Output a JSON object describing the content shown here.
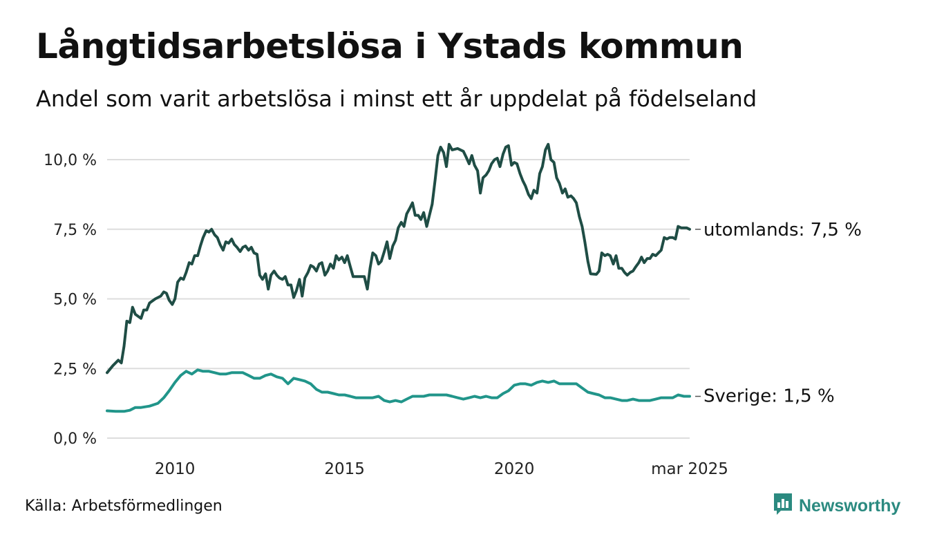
{
  "title": "Långtidsarbetslösa i Ystads kommun",
  "subtitle": "Andel som varit arbetslösa i minst ett år uppdelat på födelseland",
  "source": "Källa: Arbetsförmedlingen",
  "brand": {
    "name": "Newsworthy",
    "icon": "newsworthy-logo-icon",
    "color": "#2b8a80"
  },
  "chart_data": {
    "type": "line",
    "x_ticks": [
      {
        "x": 2010,
        "label": "2010"
      },
      {
        "x": 2015,
        "label": "2015"
      },
      {
        "x": 2020,
        "label": "2020"
      },
      {
        "x": 2025.17,
        "label": "mar 2025"
      }
    ],
    "y_ticks": [
      {
        "value": 0,
        "label": "0,0 %"
      },
      {
        "value": 2.5,
        "label": "2,5 %"
      },
      {
        "value": 5,
        "label": "5,0 %"
      },
      {
        "value": 7.5,
        "label": "7,5 %"
      },
      {
        "value": 10,
        "label": "10,0 %"
      }
    ],
    "xlim": [
      2008.0,
      2025.17
    ],
    "ylim": [
      0,
      10.6
    ],
    "grid": true,
    "series": [
      {
        "name": "utomlands",
        "end_label": "utomlands: 7,5 %",
        "color": "#1f4d45",
        "points": [
          [
            2008.0,
            2.35
          ],
          [
            2008.17,
            2.6
          ],
          [
            2008.33,
            2.8
          ],
          [
            2008.42,
            2.7
          ],
          [
            2008.5,
            3.3
          ],
          [
            2008.58,
            4.2
          ],
          [
            2008.67,
            4.15
          ],
          [
            2008.75,
            4.7
          ],
          [
            2008.83,
            4.45
          ],
          [
            2009.0,
            4.3
          ],
          [
            2009.08,
            4.6
          ],
          [
            2009.17,
            4.6
          ],
          [
            2009.25,
            4.85
          ],
          [
            2009.42,
            5.0
          ],
          [
            2009.58,
            5.1
          ],
          [
            2009.67,
            5.25
          ],
          [
            2009.75,
            5.2
          ],
          [
            2009.83,
            4.95
          ],
          [
            2009.92,
            4.8
          ],
          [
            2010.0,
            5.0
          ],
          [
            2010.08,
            5.6
          ],
          [
            2010.17,
            5.75
          ],
          [
            2010.25,
            5.7
          ],
          [
            2010.33,
            5.95
          ],
          [
            2010.42,
            6.3
          ],
          [
            2010.5,
            6.25
          ],
          [
            2010.58,
            6.55
          ],
          [
            2010.67,
            6.55
          ],
          [
            2010.75,
            6.9
          ],
          [
            2010.83,
            7.2
          ],
          [
            2010.92,
            7.45
          ],
          [
            2011.0,
            7.4
          ],
          [
            2011.08,
            7.5
          ],
          [
            2011.17,
            7.3
          ],
          [
            2011.25,
            7.2
          ],
          [
            2011.33,
            6.95
          ],
          [
            2011.42,
            6.75
          ],
          [
            2011.5,
            7.05
          ],
          [
            2011.58,
            7.0
          ],
          [
            2011.67,
            7.15
          ],
          [
            2011.75,
            6.95
          ],
          [
            2011.83,
            6.85
          ],
          [
            2011.92,
            6.7
          ],
          [
            2012.0,
            6.85
          ],
          [
            2012.08,
            6.9
          ],
          [
            2012.17,
            6.75
          ],
          [
            2012.25,
            6.85
          ],
          [
            2012.33,
            6.65
          ],
          [
            2012.42,
            6.6
          ],
          [
            2012.5,
            5.85
          ],
          [
            2012.58,
            5.7
          ],
          [
            2012.67,
            5.9
          ],
          [
            2012.75,
            5.35
          ],
          [
            2012.83,
            5.85
          ],
          [
            2012.92,
            6.0
          ],
          [
            2013.0,
            5.85
          ],
          [
            2013.08,
            5.75
          ],
          [
            2013.17,
            5.7
          ],
          [
            2013.25,
            5.8
          ],
          [
            2013.33,
            5.5
          ],
          [
            2013.42,
            5.5
          ],
          [
            2013.5,
            5.05
          ],
          [
            2013.58,
            5.3
          ],
          [
            2013.67,
            5.7
          ],
          [
            2013.75,
            5.1
          ],
          [
            2013.83,
            5.75
          ],
          [
            2013.92,
            5.95
          ],
          [
            2014.0,
            6.2
          ],
          [
            2014.08,
            6.15
          ],
          [
            2014.17,
            6.0
          ],
          [
            2014.25,
            6.25
          ],
          [
            2014.33,
            6.3
          ],
          [
            2014.42,
            5.85
          ],
          [
            2014.5,
            6.0
          ],
          [
            2014.58,
            6.25
          ],
          [
            2014.67,
            6.1
          ],
          [
            2014.75,
            6.55
          ],
          [
            2014.83,
            6.4
          ],
          [
            2014.92,
            6.5
          ],
          [
            2015.0,
            6.3
          ],
          [
            2015.08,
            6.55
          ],
          [
            2015.17,
            6.15
          ],
          [
            2015.25,
            5.8
          ],
          [
            2015.42,
            5.8
          ],
          [
            2015.58,
            5.8
          ],
          [
            2015.67,
            5.35
          ],
          [
            2015.75,
            6.1
          ],
          [
            2015.83,
            6.65
          ],
          [
            2015.92,
            6.55
          ],
          [
            2016.0,
            6.25
          ],
          [
            2016.08,
            6.35
          ],
          [
            2016.17,
            6.7
          ],
          [
            2016.25,
            7.05
          ],
          [
            2016.33,
            6.45
          ],
          [
            2016.42,
            6.9
          ],
          [
            2016.5,
            7.1
          ],
          [
            2016.58,
            7.55
          ],
          [
            2016.67,
            7.75
          ],
          [
            2016.75,
            7.6
          ],
          [
            2016.83,
            8.05
          ],
          [
            2016.92,
            8.25
          ],
          [
            2017.0,
            8.45
          ],
          [
            2017.08,
            8.0
          ],
          [
            2017.17,
            8.0
          ],
          [
            2017.25,
            7.85
          ],
          [
            2017.33,
            8.1
          ],
          [
            2017.42,
            7.6
          ],
          [
            2017.5,
            8.0
          ],
          [
            2017.58,
            8.4
          ],
          [
            2017.67,
            9.3
          ],
          [
            2017.75,
            10.15
          ],
          [
            2017.83,
            10.45
          ],
          [
            2017.92,
            10.25
          ],
          [
            2018.0,
            9.75
          ],
          [
            2018.08,
            10.55
          ],
          [
            2018.17,
            10.35
          ],
          [
            2018.33,
            10.4
          ],
          [
            2018.5,
            10.3
          ],
          [
            2018.58,
            10.1
          ],
          [
            2018.67,
            9.85
          ],
          [
            2018.75,
            10.15
          ],
          [
            2018.83,
            9.8
          ],
          [
            2018.92,
            9.6
          ],
          [
            2019.0,
            8.8
          ],
          [
            2019.08,
            9.35
          ],
          [
            2019.17,
            9.45
          ],
          [
            2019.25,
            9.6
          ],
          [
            2019.33,
            9.85
          ],
          [
            2019.42,
            10.0
          ],
          [
            2019.5,
            10.05
          ],
          [
            2019.58,
            9.75
          ],
          [
            2019.67,
            10.2
          ],
          [
            2019.75,
            10.45
          ],
          [
            2019.83,
            10.5
          ],
          [
            2019.92,
            9.8
          ],
          [
            2020.0,
            9.9
          ],
          [
            2020.08,
            9.85
          ],
          [
            2020.17,
            9.5
          ],
          [
            2020.25,
            9.25
          ],
          [
            2020.33,
            9.05
          ],
          [
            2020.42,
            8.75
          ],
          [
            2020.5,
            8.6
          ],
          [
            2020.58,
            8.9
          ],
          [
            2020.67,
            8.8
          ],
          [
            2020.75,
            9.5
          ],
          [
            2020.83,
            9.75
          ],
          [
            2020.92,
            10.35
          ],
          [
            2021.0,
            10.55
          ],
          [
            2021.08,
            10.0
          ],
          [
            2021.17,
            9.9
          ],
          [
            2021.25,
            9.35
          ],
          [
            2021.33,
            9.15
          ],
          [
            2021.42,
            8.8
          ],
          [
            2021.5,
            8.95
          ],
          [
            2021.58,
            8.65
          ],
          [
            2021.67,
            8.7
          ],
          [
            2021.75,
            8.6
          ],
          [
            2021.83,
            8.45
          ],
          [
            2021.92,
            7.95
          ],
          [
            2022.0,
            7.6
          ],
          [
            2022.08,
            7.05
          ],
          [
            2022.17,
            6.35
          ],
          [
            2022.25,
            5.9
          ],
          [
            2022.42,
            5.88
          ],
          [
            2022.5,
            6.0
          ],
          [
            2022.58,
            6.65
          ],
          [
            2022.67,
            6.55
          ],
          [
            2022.75,
            6.6
          ],
          [
            2022.83,
            6.55
          ],
          [
            2022.92,
            6.25
          ],
          [
            2023.0,
            6.55
          ],
          [
            2023.08,
            6.1
          ],
          [
            2023.17,
            6.1
          ],
          [
            2023.25,
            5.95
          ],
          [
            2023.33,
            5.85
          ],
          [
            2023.42,
            5.95
          ],
          [
            2023.5,
            6.0
          ],
          [
            2023.58,
            6.15
          ],
          [
            2023.67,
            6.3
          ],
          [
            2023.75,
            6.5
          ],
          [
            2023.83,
            6.3
          ],
          [
            2023.92,
            6.45
          ],
          [
            2024.0,
            6.45
          ],
          [
            2024.08,
            6.6
          ],
          [
            2024.17,
            6.55
          ],
          [
            2024.25,
            6.65
          ],
          [
            2024.33,
            6.75
          ],
          [
            2024.42,
            7.2
          ],
          [
            2024.5,
            7.15
          ],
          [
            2024.58,
            7.2
          ],
          [
            2024.67,
            7.2
          ],
          [
            2024.75,
            7.15
          ],
          [
            2024.83,
            7.6
          ],
          [
            2024.92,
            7.55
          ],
          [
            2025.0,
            7.55
          ],
          [
            2025.08,
            7.55
          ],
          [
            2025.17,
            7.5
          ]
        ]
      },
      {
        "name": "Sverige",
        "end_label": "Sverige: 1,5 %",
        "color": "#21958a",
        "points": [
          [
            2008.0,
            0.98
          ],
          [
            2008.25,
            0.96
          ],
          [
            2008.5,
            0.96
          ],
          [
            2008.67,
            1.0
          ],
          [
            2008.83,
            1.1
          ],
          [
            2009.0,
            1.1
          ],
          [
            2009.25,
            1.15
          ],
          [
            2009.5,
            1.25
          ],
          [
            2009.67,
            1.45
          ],
          [
            2009.83,
            1.7
          ],
          [
            2010.0,
            2.0
          ],
          [
            2010.17,
            2.25
          ],
          [
            2010.33,
            2.4
          ],
          [
            2010.5,
            2.3
          ],
          [
            2010.67,
            2.45
          ],
          [
            2010.83,
            2.4
          ],
          [
            2011.0,
            2.4
          ],
          [
            2011.17,
            2.35
          ],
          [
            2011.33,
            2.3
          ],
          [
            2011.5,
            2.3
          ],
          [
            2011.67,
            2.35
          ],
          [
            2011.83,
            2.35
          ],
          [
            2012.0,
            2.35
          ],
          [
            2012.17,
            2.25
          ],
          [
            2012.33,
            2.15
          ],
          [
            2012.5,
            2.15
          ],
          [
            2012.67,
            2.25
          ],
          [
            2012.83,
            2.3
          ],
          [
            2013.0,
            2.2
          ],
          [
            2013.17,
            2.15
          ],
          [
            2013.33,
            1.95
          ],
          [
            2013.5,
            2.15
          ],
          [
            2013.67,
            2.1
          ],
          [
            2013.83,
            2.05
          ],
          [
            2014.0,
            1.95
          ],
          [
            2014.17,
            1.75
          ],
          [
            2014.33,
            1.65
          ],
          [
            2014.5,
            1.65
          ],
          [
            2014.67,
            1.6
          ],
          [
            2014.83,
            1.55
          ],
          [
            2015.0,
            1.55
          ],
          [
            2015.17,
            1.5
          ],
          [
            2015.33,
            1.45
          ],
          [
            2015.5,
            1.45
          ],
          [
            2015.67,
            1.45
          ],
          [
            2015.83,
            1.45
          ],
          [
            2016.0,
            1.5
          ],
          [
            2016.17,
            1.35
          ],
          [
            2016.33,
            1.3
          ],
          [
            2016.5,
            1.35
          ],
          [
            2016.67,
            1.3
          ],
          [
            2016.83,
            1.4
          ],
          [
            2017.0,
            1.5
          ],
          [
            2017.17,
            1.5
          ],
          [
            2017.33,
            1.5
          ],
          [
            2017.5,
            1.55
          ],
          [
            2017.67,
            1.55
          ],
          [
            2017.83,
            1.55
          ],
          [
            2018.0,
            1.55
          ],
          [
            2018.17,
            1.5
          ],
          [
            2018.33,
            1.45
          ],
          [
            2018.5,
            1.4
          ],
          [
            2018.67,
            1.45
          ],
          [
            2018.83,
            1.5
          ],
          [
            2019.0,
            1.45
          ],
          [
            2019.17,
            1.5
          ],
          [
            2019.33,
            1.45
          ],
          [
            2019.5,
            1.45
          ],
          [
            2019.67,
            1.6
          ],
          [
            2019.83,
            1.7
          ],
          [
            2020.0,
            1.9
          ],
          [
            2020.17,
            1.95
          ],
          [
            2020.33,
            1.95
          ],
          [
            2020.5,
            1.9
          ],
          [
            2020.67,
            2.0
          ],
          [
            2020.83,
            2.05
          ],
          [
            2021.0,
            2.0
          ],
          [
            2021.17,
            2.05
          ],
          [
            2021.33,
            1.95
          ],
          [
            2021.5,
            1.95
          ],
          [
            2021.67,
            1.95
          ],
          [
            2021.83,
            1.95
          ],
          [
            2022.0,
            1.8
          ],
          [
            2022.17,
            1.65
          ],
          [
            2022.33,
            1.6
          ],
          [
            2022.5,
            1.55
          ],
          [
            2022.67,
            1.45
          ],
          [
            2022.83,
            1.45
          ],
          [
            2023.0,
            1.4
          ],
          [
            2023.17,
            1.35
          ],
          [
            2023.33,
            1.35
          ],
          [
            2023.5,
            1.4
          ],
          [
            2023.67,
            1.35
          ],
          [
            2023.83,
            1.35
          ],
          [
            2024.0,
            1.35
          ],
          [
            2024.17,
            1.4
          ],
          [
            2024.33,
            1.45
          ],
          [
            2024.5,
            1.45
          ],
          [
            2024.67,
            1.45
          ],
          [
            2024.83,
            1.55
          ],
          [
            2025.0,
            1.5
          ],
          [
            2025.17,
            1.5
          ]
        ]
      }
    ]
  }
}
